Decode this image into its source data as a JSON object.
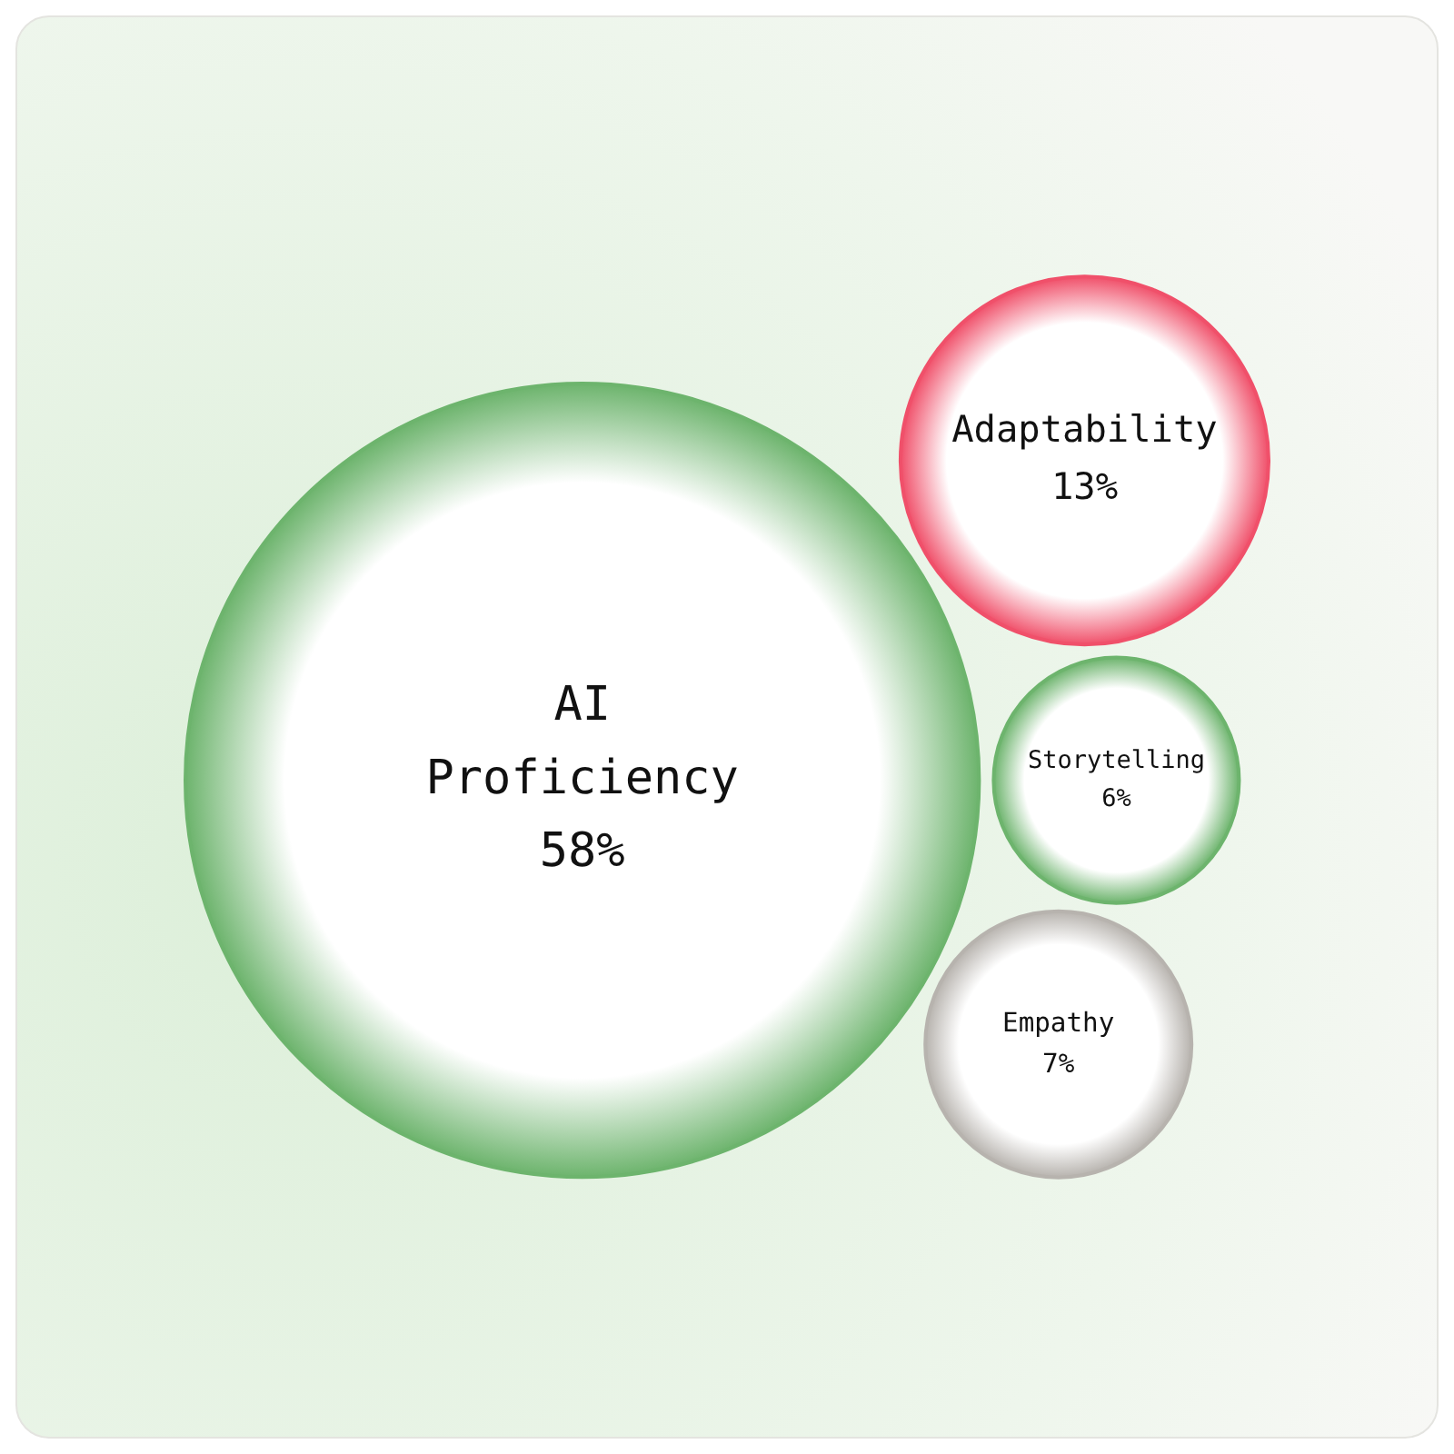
{
  "chart_data": {
    "type": "other",
    "categories": [
      "AI Proficiency",
      "Storytelling",
      "Empathy",
      "Adaptability"
    ],
    "values": [
      58,
      6,
      7,
      13
    ],
    "value_labels": [
      "58%",
      "6%",
      "7%",
      "13%"
    ],
    "colors": [
      "#6db46d",
      "#6db46d",
      "#b7b3ae",
      "#f0506a"
    ]
  }
}
